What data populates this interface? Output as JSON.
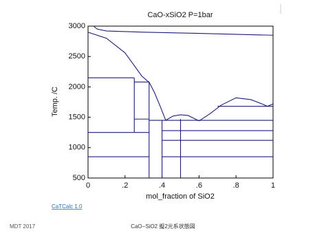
{
  "chart_data": {
    "type": "phase-diagram",
    "title": "CaO-xSiO2    P=1bar",
    "x_label": "mol_fraction of SiO2",
    "y_label": "Temp. /C",
    "software": "CaTCalc 1.0",
    "xlim": [
      0,
      1
    ],
    "ylim": [
      500,
      3000
    ],
    "xticks": [
      0,
      {
        "value": 0.2,
        "label": ".2"
      },
      {
        "value": 0.4,
        "label": ".4"
      },
      {
        "value": 0.6,
        "label": ".6"
      },
      {
        "value": 0.8,
        "label": ".8"
      },
      1
    ],
    "yticks": [
      500,
      1000,
      1500,
      2000,
      2500,
      3000
    ],
    "color": "#1c1c78",
    "lines": [
      {
        "x": [
          0,
          0.1,
          0.2,
          0.25,
          0.29,
          0.32
        ],
        "values": [
          2900,
          2800,
          2560,
          2350,
          2180,
          2100
        ]
      },
      {
        "x": [
          0.32,
          0.33,
          0.36,
          0.39,
          0.42
        ],
        "values": [
          2100,
          2080,
          1900,
          1680,
          1450
        ]
      },
      {
        "x": [
          0.42,
          0.46,
          0.5,
          0.54,
          0.6
        ],
        "values": [
          1450,
          1520,
          1540,
          1530,
          1440
        ]
      },
      {
        "x": [
          0.6,
          0.66,
          0.72,
          0.8,
          0.88,
          0.94,
          0.97,
          1
        ],
        "values": [
          1440,
          1560,
          1700,
          1820,
          1790,
          1720,
          1680,
          1720
        ]
      },
      {
        "x": [
          0.03,
          0.05,
          0.1,
          0.3,
          0.6,
          1
        ],
        "values": [
          3000,
          2950,
          2920,
          2900,
          2880,
          2850
        ]
      },
      {
        "x": [
          0,
          0.25
        ],
        "values": [
          2150,
          2150
        ]
      },
      {
        "x": [
          0.25,
          0.33
        ],
        "values": [
          2080,
          2080
        ]
      },
      {
        "x": [
          0,
          0.33
        ],
        "values": [
          1250,
          1250
        ]
      },
      {
        "x": [
          0.25,
          0.33
        ],
        "values": [
          1470,
          1470
        ]
      },
      {
        "x": [
          0.33,
          0.4
        ],
        "values": [
          1450,
          1450
        ]
      },
      {
        "x": [
          0.4,
          1
        ],
        "values": [
          1450,
          1450
        ]
      },
      {
        "x": [
          0.7,
          1
        ],
        "values": [
          1680,
          1680
        ]
      },
      {
        "x": [
          0.4,
          1
        ],
        "values": [
          1280,
          1280
        ]
      },
      {
        "x": [
          0.4,
          1
        ],
        "values": [
          1120,
          1120
        ]
      },
      {
        "x": [
          0,
          0.33
        ],
        "values": [
          850,
          850
        ]
      },
      {
        "x": [
          0.4,
          1
        ],
        "values": [
          850,
          850
        ]
      },
      {
        "x": [
          0.25,
          0.25
        ],
        "values": [
          1250,
          2150
        ]
      },
      {
        "x": [
          0.33,
          0.33
        ],
        "values": [
          500,
          2080
        ]
      },
      {
        "x": [
          0.4,
          0.4
        ],
        "values": [
          500,
          1450
        ]
      },
      {
        "x": [
          0.5,
          0.5
        ],
        "values": [
          500,
          1470
        ]
      }
    ]
  },
  "footer": {
    "left": "MDT  2017",
    "center": "CaO−SiO2  擬2元系状態図"
  }
}
